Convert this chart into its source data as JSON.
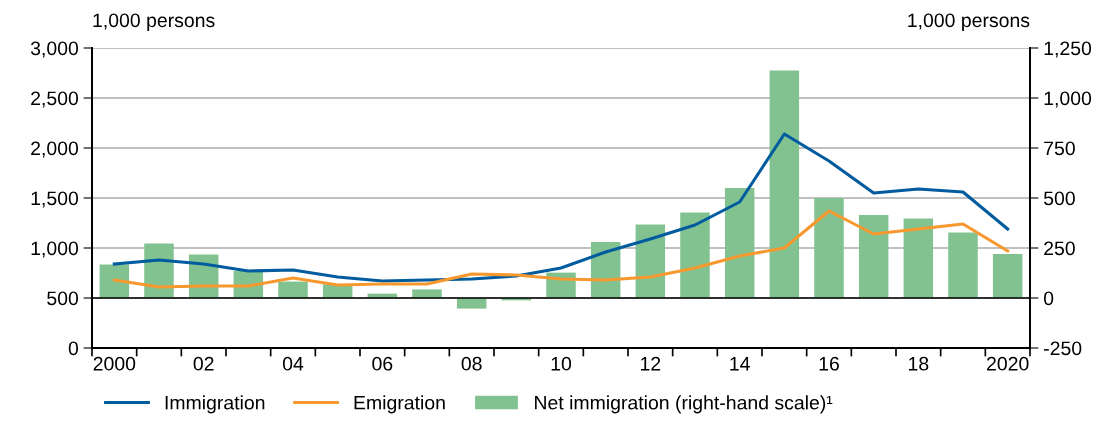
{
  "chart_data": {
    "type": "line",
    "ylabel": "1,000 persons",
    "y2label": "1,000 persons",
    "categories": [
      "2000",
      null,
      "02",
      null,
      "04",
      null,
      "06",
      null,
      "08",
      null,
      "10",
      null,
      "12",
      null,
      "14",
      null,
      "16",
      null,
      "18",
      null,
      "2020"
    ],
    "series": [
      {
        "name": "Immigration",
        "color": "#005b9f",
        "values": [
          840,
          880,
          840,
          770,
          780,
          710,
          670,
          680,
          690,
          720,
          800,
          960,
          1090,
          1230,
          1460,
          2140,
          1870,
          1550,
          1590,
          1560,
          1190
        ]
      },
      {
        "name": "Emigration",
        "color": "#f7982f",
        "values": [
          680,
          610,
          620,
          620,
          700,
          630,
          640,
          640,
          740,
          730,
          690,
          680,
          710,
          800,
          920,
          1000,
          1370,
          1140,
          1190,
          1240,
          970
        ]
      },
      {
        "name": "Net immigration (right-hand scale)¹",
        "type": "bar",
        "axis": "y2",
        "color": "#81c290",
        "values": [
          167,
          272,
          218,
          135,
          82,
          68,
          22,
          43,
          -53,
          -12,
          127,
          280,
          368,
          428,
          550,
          1138,
          500,
          415,
          398,
          327,
          220
        ]
      }
    ],
    "ylim": [
      0,
      3000
    ],
    "yticks": [
      {
        "value": 0,
        "label": "0"
      },
      {
        "value": 500,
        "label": "500"
      },
      {
        "value": 1000,
        "label": "1,000"
      },
      {
        "value": 1500,
        "label": "1,500"
      },
      {
        "value": 2000,
        "label": "2,000"
      },
      {
        "value": 2500,
        "label": "2,500"
      },
      {
        "value": 3000,
        "label": "3,000"
      }
    ],
    "y2lim": [
      -250,
      1250
    ],
    "y2ticks": [
      {
        "value": -250,
        "label": "-250"
      },
      {
        "value": 0,
        "label": "0"
      },
      {
        "value": 250,
        "label": "250"
      },
      {
        "value": 500,
        "label": "500"
      },
      {
        "value": 750,
        "label": "750"
      },
      {
        "value": 1000,
        "label": "1,000"
      },
      {
        "value": 1250,
        "label": "1,250"
      }
    ],
    "ref_lines": [
      {
        "axis": "y2",
        "value": 0,
        "color": "#000000"
      }
    ],
    "grid": "y",
    "legend": "bottom",
    "marker": "none",
    "line_style": "solid"
  }
}
